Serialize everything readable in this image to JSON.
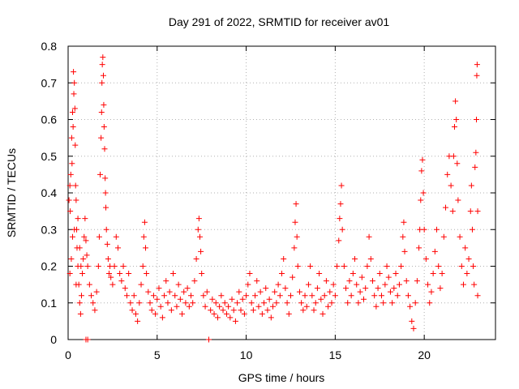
{
  "chart_data": {
    "type": "scatter",
    "title": "Day 291 of 2022, SRMTID for receiver av01",
    "xlabel": "GPS time / hours",
    "ylabel": "SRMTID / TECUs",
    "xlim": [
      0,
      24
    ],
    "ylim": [
      0,
      0.8
    ],
    "xticks": [
      0,
      5,
      10,
      15,
      20
    ],
    "xtick_labels": [
      "0",
      "5",
      "10",
      "15",
      "20"
    ],
    "yticks": [
      0,
      0.1,
      0.2,
      0.3,
      0.4,
      0.5,
      0.6,
      0.7,
      0.8
    ],
    "ytick_labels": [
      "0",
      "0.1",
      "0.2",
      "0.3",
      "0.4",
      "0.5",
      "0.6",
      "0.7",
      "0.8"
    ],
    "grid": true,
    "marker": "plus",
    "color": "#ff0000",
    "series": [
      {
        "name": "av01",
        "points": [
          [
            0.05,
            0.38
          ],
          [
            0.1,
            0.42
          ],
          [
            0.12,
            0.35
          ],
          [
            0.15,
            0.45
          ],
          [
            0.2,
            0.55
          ],
          [
            0.22,
            0.48
          ],
          [
            0.25,
            0.62
          ],
          [
            0.28,
            0.58
          ],
          [
            0.3,
            0.73
          ],
          [
            0.32,
            0.67
          ],
          [
            0.35,
            0.7
          ],
          [
            0.38,
            0.63
          ],
          [
            0.4,
            0.53
          ],
          [
            0.42,
            0.42
          ],
          [
            0.45,
            0.38
          ],
          [
            0.48,
            0.3
          ],
          [
            0.5,
            0.25
          ],
          [
            0.55,
            0.2
          ],
          [
            0.6,
            0.15
          ],
          [
            0.65,
            0.1
          ],
          [
            0.7,
            0.07
          ],
          [
            0.75,
            0.12
          ],
          [
            0.8,
            0.18
          ],
          [
            0.85,
            0.22
          ],
          [
            0.9,
            0.28
          ],
          [
            0.95,
            0.33
          ],
          [
            1.0,
            0.27
          ],
          [
            1.05,
            0.23
          ],
          [
            0.1,
            0.18
          ],
          [
            0.18,
            0.22
          ],
          [
            0.25,
            0.28
          ],
          [
            0.35,
            0.3
          ],
          [
            0.45,
            0.15
          ],
          [
            0.55,
            0.33
          ],
          [
            0.65,
            0.25
          ],
          [
            0.72,
            0.2
          ],
          [
            1.0,
            0.0
          ],
          [
            1.1,
            0.0
          ],
          [
            1.1,
            0.2
          ],
          [
            1.2,
            0.15
          ],
          [
            1.3,
            0.12
          ],
          [
            1.4,
            0.1
          ],
          [
            1.5,
            0.08
          ],
          [
            1.6,
            0.13
          ],
          [
            1.7,
            0.2
          ],
          [
            1.75,
            0.28
          ],
          [
            1.8,
            0.45
          ],
          [
            1.85,
            0.55
          ],
          [
            1.88,
            0.62
          ],
          [
            1.9,
            0.7
          ],
          [
            1.92,
            0.75
          ],
          [
            1.95,
            0.77
          ],
          [
            1.98,
            0.72
          ],
          [
            2.0,
            0.64
          ],
          [
            2.02,
            0.58
          ],
          [
            2.05,
            0.52
          ],
          [
            2.08,
            0.44
          ],
          [
            2.1,
            0.4
          ],
          [
            2.12,
            0.36
          ],
          [
            2.15,
            0.3
          ],
          [
            2.2,
            0.26
          ],
          [
            2.25,
            0.22
          ],
          [
            2.3,
            0.18
          ],
          [
            2.35,
            0.2
          ],
          [
            2.4,
            0.17
          ],
          [
            2.5,
            0.15
          ],
          [
            2.6,
            0.2
          ],
          [
            2.7,
            0.28
          ],
          [
            2.8,
            0.25
          ],
          [
            2.9,
            0.18
          ],
          [
            3.0,
            0.16
          ],
          [
            3.1,
            0.2
          ],
          [
            3.2,
            0.14
          ],
          [
            3.3,
            0.12
          ],
          [
            3.4,
            0.18
          ],
          [
            3.5,
            0.1
          ],
          [
            3.6,
            0.08
          ],
          [
            3.7,
            0.12
          ],
          [
            3.8,
            0.07
          ],
          [
            3.9,
            0.05
          ],
          [
            4.0,
            0.1
          ],
          [
            4.1,
            0.15
          ],
          [
            4.2,
            0.2
          ],
          [
            4.25,
            0.28
          ],
          [
            4.3,
            0.32
          ],
          [
            4.35,
            0.25
          ],
          [
            4.4,
            0.18
          ],
          [
            4.5,
            0.13
          ],
          [
            4.6,
            0.1
          ],
          [
            4.7,
            0.08
          ],
          [
            4.8,
            0.12
          ],
          [
            4.9,
            0.07
          ],
          [
            5.0,
            0.11
          ],
          [
            5.1,
            0.14
          ],
          [
            5.2,
            0.09
          ],
          [
            5.3,
            0.06
          ],
          [
            5.4,
            0.12
          ],
          [
            5.5,
            0.16
          ],
          [
            5.6,
            0.1
          ],
          [
            5.7,
            0.13
          ],
          [
            5.8,
            0.08
          ],
          [
            5.9,
            0.18
          ],
          [
            6.0,
            0.12
          ],
          [
            6.1,
            0.09
          ],
          [
            6.2,
            0.15
          ],
          [
            6.3,
            0.11
          ],
          [
            6.4,
            0.07
          ],
          [
            6.5,
            0.13
          ],
          [
            6.6,
            0.1
          ],
          [
            6.7,
            0.14
          ],
          [
            6.8,
            0.09
          ],
          [
            6.9,
            0.12
          ],
          [
            7.0,
            0.1
          ],
          [
            7.1,
            0.16
          ],
          [
            7.2,
            0.22
          ],
          [
            7.3,
            0.3
          ],
          [
            7.35,
            0.33
          ],
          [
            7.4,
            0.28
          ],
          [
            7.45,
            0.24
          ],
          [
            7.5,
            0.18
          ],
          [
            7.6,
            0.12
          ],
          [
            7.7,
            0.09
          ],
          [
            7.8,
            0.13
          ],
          [
            7.9,
            0.0
          ],
          [
            8.0,
            0.08
          ],
          [
            8.1,
            0.11
          ],
          [
            8.2,
            0.07
          ],
          [
            8.3,
            0.1
          ],
          [
            8.4,
            0.06
          ],
          [
            8.5,
            0.09
          ],
          [
            8.6,
            0.12
          ],
          [
            8.7,
            0.08
          ],
          [
            8.8,
            0.1
          ],
          [
            8.9,
            0.07
          ],
          [
            9.0,
            0.09
          ],
          [
            9.1,
            0.06
          ],
          [
            9.2,
            0.11
          ],
          [
            9.3,
            0.08
          ],
          [
            9.4,
            0.05
          ],
          [
            9.5,
            0.1
          ],
          [
            9.6,
            0.13
          ],
          [
            9.7,
            0.08
          ],
          [
            9.8,
            0.11
          ],
          [
            9.9,
            0.07
          ],
          [
            10.0,
            0.12
          ],
          [
            10.1,
            0.15
          ],
          [
            10.2,
            0.18
          ],
          [
            10.3,
            0.1
          ],
          [
            10.4,
            0.08
          ],
          [
            10.5,
            0.12
          ],
          [
            10.6,
            0.16
          ],
          [
            10.7,
            0.09
          ],
          [
            10.8,
            0.13
          ],
          [
            10.9,
            0.07
          ],
          [
            11.0,
            0.1
          ],
          [
            11.1,
            0.14
          ],
          [
            11.2,
            0.08
          ],
          [
            11.3,
            0.11
          ],
          [
            11.4,
            0.06
          ],
          [
            11.5,
            0.09
          ],
          [
            11.6,
            0.13
          ],
          [
            11.7,
            0.1
          ],
          [
            11.8,
            0.15
          ],
          [
            11.9,
            0.12
          ],
          [
            12.0,
            0.18
          ],
          [
            12.1,
            0.22
          ],
          [
            12.2,
            0.14
          ],
          [
            12.3,
            0.1
          ],
          [
            12.4,
            0.07
          ],
          [
            12.5,
            0.12
          ],
          [
            12.6,
            0.17
          ],
          [
            12.7,
            0.25
          ],
          [
            12.75,
            0.32
          ],
          [
            12.8,
            0.37
          ],
          [
            12.85,
            0.28
          ],
          [
            12.9,
            0.2
          ],
          [
            13.0,
            0.13
          ],
          [
            13.1,
            0.1
          ],
          [
            13.2,
            0.08
          ],
          [
            13.3,
            0.12
          ],
          [
            13.4,
            0.09
          ],
          [
            13.5,
            0.15
          ],
          [
            13.6,
            0.2
          ],
          [
            13.7,
            0.12
          ],
          [
            13.8,
            0.08
          ],
          [
            13.9,
            0.1
          ],
          [
            14.0,
            0.14
          ],
          [
            14.1,
            0.18
          ],
          [
            14.2,
            0.11
          ],
          [
            14.3,
            0.07
          ],
          [
            14.4,
            0.12
          ],
          [
            14.5,
            0.16
          ],
          [
            14.6,
            0.09
          ],
          [
            14.7,
            0.13
          ],
          [
            14.8,
            0.1
          ],
          [
            14.9,
            0.15
          ],
          [
            15.0,
            0.12
          ],
          [
            15.1,
            0.2
          ],
          [
            15.2,
            0.27
          ],
          [
            15.25,
            0.33
          ],
          [
            15.3,
            0.37
          ],
          [
            15.35,
            0.42
          ],
          [
            15.4,
            0.3
          ],
          [
            15.5,
            0.2
          ],
          [
            15.6,
            0.14
          ],
          [
            15.7,
            0.1
          ],
          [
            15.8,
            0.16
          ],
          [
            15.9,
            0.12
          ],
          [
            16.0,
            0.18
          ],
          [
            16.1,
            0.22
          ],
          [
            16.2,
            0.15
          ],
          [
            16.3,
            0.1
          ],
          [
            16.4,
            0.13
          ],
          [
            16.5,
            0.17
          ],
          [
            16.6,
            0.11
          ],
          [
            16.7,
            0.14
          ],
          [
            16.8,
            0.2
          ],
          [
            16.9,
            0.28
          ],
          [
            17.0,
            0.22
          ],
          [
            17.1,
            0.16
          ],
          [
            17.2,
            0.12
          ],
          [
            17.3,
            0.09
          ],
          [
            17.4,
            0.14
          ],
          [
            17.5,
            0.18
          ],
          [
            17.6,
            0.12
          ],
          [
            17.7,
            0.1
          ],
          [
            17.8,
            0.15
          ],
          [
            17.9,
            0.2
          ],
          [
            18.0,
            0.17
          ],
          [
            18.1,
            0.13
          ],
          [
            18.2,
            0.1
          ],
          [
            18.3,
            0.14
          ],
          [
            18.4,
            0.18
          ],
          [
            18.5,
            0.12
          ],
          [
            18.6,
            0.15
          ],
          [
            18.7,
            0.2
          ],
          [
            18.8,
            0.28
          ],
          [
            18.85,
            0.32
          ],
          [
            18.9,
            0.24
          ],
          [
            19.0,
            0.16
          ],
          [
            19.1,
            0.12
          ],
          [
            19.2,
            0.09
          ],
          [
            19.3,
            0.05
          ],
          [
            19.4,
            0.03
          ],
          [
            19.5,
            0.1
          ],
          [
            19.6,
            0.16
          ],
          [
            19.7,
            0.25
          ],
          [
            19.75,
            0.3
          ],
          [
            19.8,
            0.38
          ],
          [
            19.85,
            0.46
          ],
          [
            19.9,
            0.49
          ],
          [
            19.95,
            0.4
          ],
          [
            20.0,
            0.3
          ],
          [
            20.1,
            0.22
          ],
          [
            20.2,
            0.15
          ],
          [
            20.3,
            0.1
          ],
          [
            20.4,
            0.13
          ],
          [
            20.5,
            0.18
          ],
          [
            20.6,
            0.24
          ],
          [
            20.7,
            0.3
          ],
          [
            20.8,
            0.2
          ],
          [
            20.9,
            0.14
          ],
          [
            21.0,
            0.18
          ],
          [
            21.1,
            0.28
          ],
          [
            21.2,
            0.36
          ],
          [
            21.3,
            0.45
          ],
          [
            21.4,
            0.5
          ],
          [
            21.5,
            0.42
          ],
          [
            21.6,
            0.35
          ],
          [
            21.65,
            0.5
          ],
          [
            21.7,
            0.58
          ],
          [
            21.75,
            0.65
          ],
          [
            21.8,
            0.6
          ],
          [
            21.85,
            0.48
          ],
          [
            21.9,
            0.38
          ],
          [
            22.0,
            0.28
          ],
          [
            22.1,
            0.2
          ],
          [
            22.2,
            0.15
          ],
          [
            22.3,
            0.25
          ],
          [
            22.4,
            0.18
          ],
          [
            22.5,
            0.22
          ],
          [
            22.6,
            0.35
          ],
          [
            22.65,
            0.42
          ],
          [
            22.7,
            0.3
          ],
          [
            22.75,
            0.2
          ],
          [
            22.8,
            0.15
          ],
          [
            22.85,
            0.47
          ],
          [
            22.9,
            0.51
          ],
          [
            22.93,
            0.6
          ],
          [
            22.95,
            0.72
          ],
          [
            22.97,
            0.75
          ],
          [
            23.0,
            0.35
          ],
          [
            23.0,
            0.12
          ]
        ]
      }
    ]
  }
}
